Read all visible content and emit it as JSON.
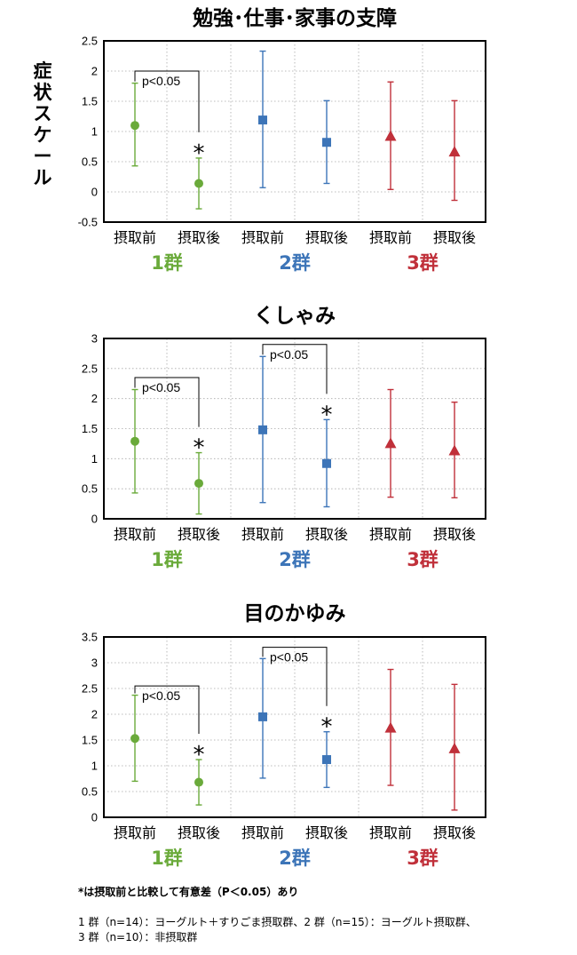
{
  "y_axis_label": "症状スケール",
  "colors": {
    "group1": "#6aaa3a",
    "group2": "#3d75b8",
    "group3": "#c0303a",
    "grid": "#a8a8a8"
  },
  "chart_data": [
    {
      "type": "scatter",
      "title": "勉強･仕事･家事の支障",
      "categories": [
        "摂取前",
        "摂取後",
        "摂取前",
        "摂取後",
        "摂取前",
        "摂取後"
      ],
      "groups": [
        "1群",
        "2群",
        "3群"
      ],
      "ylim": [
        -0.5,
        2.5
      ],
      "yticks": [
        "-0.5",
        "0",
        "0.5",
        "1",
        "1.5",
        "2",
        "2.5"
      ],
      "grid": true,
      "series": [
        {
          "name": "1群",
          "marker": "circle",
          "color": "#6aaa3a",
          "points": [
            {
              "x": "摂取前",
              "y": 1.1,
              "low": 0.43,
              "high": 1.8
            },
            {
              "x": "摂取後",
              "y": 0.14,
              "low": -0.28,
              "high": 0.56
            }
          ]
        },
        {
          "name": "2群",
          "marker": "square",
          "color": "#3d75b8",
          "points": [
            {
              "x": "摂取前",
              "y": 1.19,
              "low": 0.07,
              "high": 2.33
            },
            {
              "x": "摂取後",
              "y": 0.82,
              "low": 0.14,
              "high": 1.51
            }
          ]
        },
        {
          "name": "3群",
          "marker": "triangle",
          "color": "#c0303a",
          "points": [
            {
              "x": "摂取前",
              "y": 0.92,
              "low": 0.04,
              "high": 1.82
            },
            {
              "x": "摂取後",
              "y": 0.66,
              "low": -0.14,
              "high": 1.51
            }
          ]
        }
      ],
      "annotations": [
        {
          "group": "1群",
          "text": "p<0.05",
          "bracket_top": 2.0,
          "star": "*"
        }
      ]
    },
    {
      "type": "scatter",
      "title": "くしゃみ",
      "categories": [
        "摂取前",
        "摂取後",
        "摂取前",
        "摂取後",
        "摂取前",
        "摂取後"
      ],
      "groups": [
        "1群",
        "2群",
        "3群"
      ],
      "ylim": [
        0,
        3
      ],
      "yticks": [
        "0",
        "0.5",
        "1",
        "1.5",
        "2",
        "2.5",
        "3"
      ],
      "grid": true,
      "series": [
        {
          "name": "1群",
          "marker": "circle",
          "color": "#6aaa3a",
          "points": [
            {
              "x": "摂取前",
              "y": 1.29,
              "low": 0.43,
              "high": 2.15
            },
            {
              "x": "摂取後",
              "y": 0.59,
              "low": 0.08,
              "high": 1.1
            }
          ]
        },
        {
          "name": "2群",
          "marker": "square",
          "color": "#3d75b8",
          "points": [
            {
              "x": "摂取前",
              "y": 1.48,
              "low": 0.27,
              "high": 2.7
            },
            {
              "x": "摂取後",
              "y": 0.92,
              "low": 0.2,
              "high": 1.65
            }
          ]
        },
        {
          "name": "3群",
          "marker": "triangle",
          "color": "#c0303a",
          "points": [
            {
              "x": "摂取前",
              "y": 1.25,
              "low": 0.36,
              "high": 2.15
            },
            {
              "x": "摂取後",
              "y": 1.13,
              "low": 0.35,
              "high": 1.94
            }
          ]
        }
      ],
      "annotations": [
        {
          "group": "1群",
          "text": "p<0.05",
          "bracket_top": 2.35,
          "star": "*"
        },
        {
          "group": "2群",
          "text": "p<0.05",
          "bracket_top": 2.9,
          "star": "*"
        }
      ]
    },
    {
      "type": "scatter",
      "title": "目のかゆみ",
      "categories": [
        "摂取前",
        "摂取後",
        "摂取前",
        "摂取後",
        "摂取前",
        "摂取後"
      ],
      "groups": [
        "1群",
        "2群",
        "3群"
      ],
      "ylim": [
        0,
        3.5
      ],
      "yticks": [
        "0",
        "0.5",
        "1",
        "1.5",
        "2",
        "2.5",
        "3",
        "3.5"
      ],
      "grid": true,
      "series": [
        {
          "name": "1群",
          "marker": "circle",
          "color": "#6aaa3a",
          "points": [
            {
              "x": "摂取前",
              "y": 1.53,
              "low": 0.7,
              "high": 2.37
            },
            {
              "x": "摂取後",
              "y": 0.68,
              "low": 0.24,
              "high": 1.12
            }
          ]
        },
        {
          "name": "2群",
          "marker": "square",
          "color": "#3d75b8",
          "points": [
            {
              "x": "摂取前",
              "y": 1.95,
              "low": 0.76,
              "high": 3.08
            },
            {
              "x": "摂取後",
              "y": 1.12,
              "low": 0.58,
              "high": 1.66
            }
          ]
        },
        {
          "name": "3群",
          "marker": "triangle",
          "color": "#c0303a",
          "points": [
            {
              "x": "摂取前",
              "y": 1.73,
              "low": 0.62,
              "high": 2.87
            },
            {
              "x": "摂取後",
              "y": 1.33,
              "low": 0.14,
              "high": 2.58
            }
          ]
        }
      ],
      "annotations": [
        {
          "group": "1群",
          "text": "p<0.05",
          "bracket_top": 2.55,
          "star": "*"
        },
        {
          "group": "2群",
          "text": "p<0.05",
          "bracket_top": 3.3,
          "star": "*"
        }
      ]
    }
  ],
  "footnotes": {
    "significance": "*は摂取前と比較して有意差（P＜0.05）あり",
    "group_line1": "1 群（n=14）：ヨーグルト＋すりごま摂取群、2 群（n=15）：ヨーグルト摂取群、",
    "group_line2": "3 群（n=10）：非摂取群"
  }
}
